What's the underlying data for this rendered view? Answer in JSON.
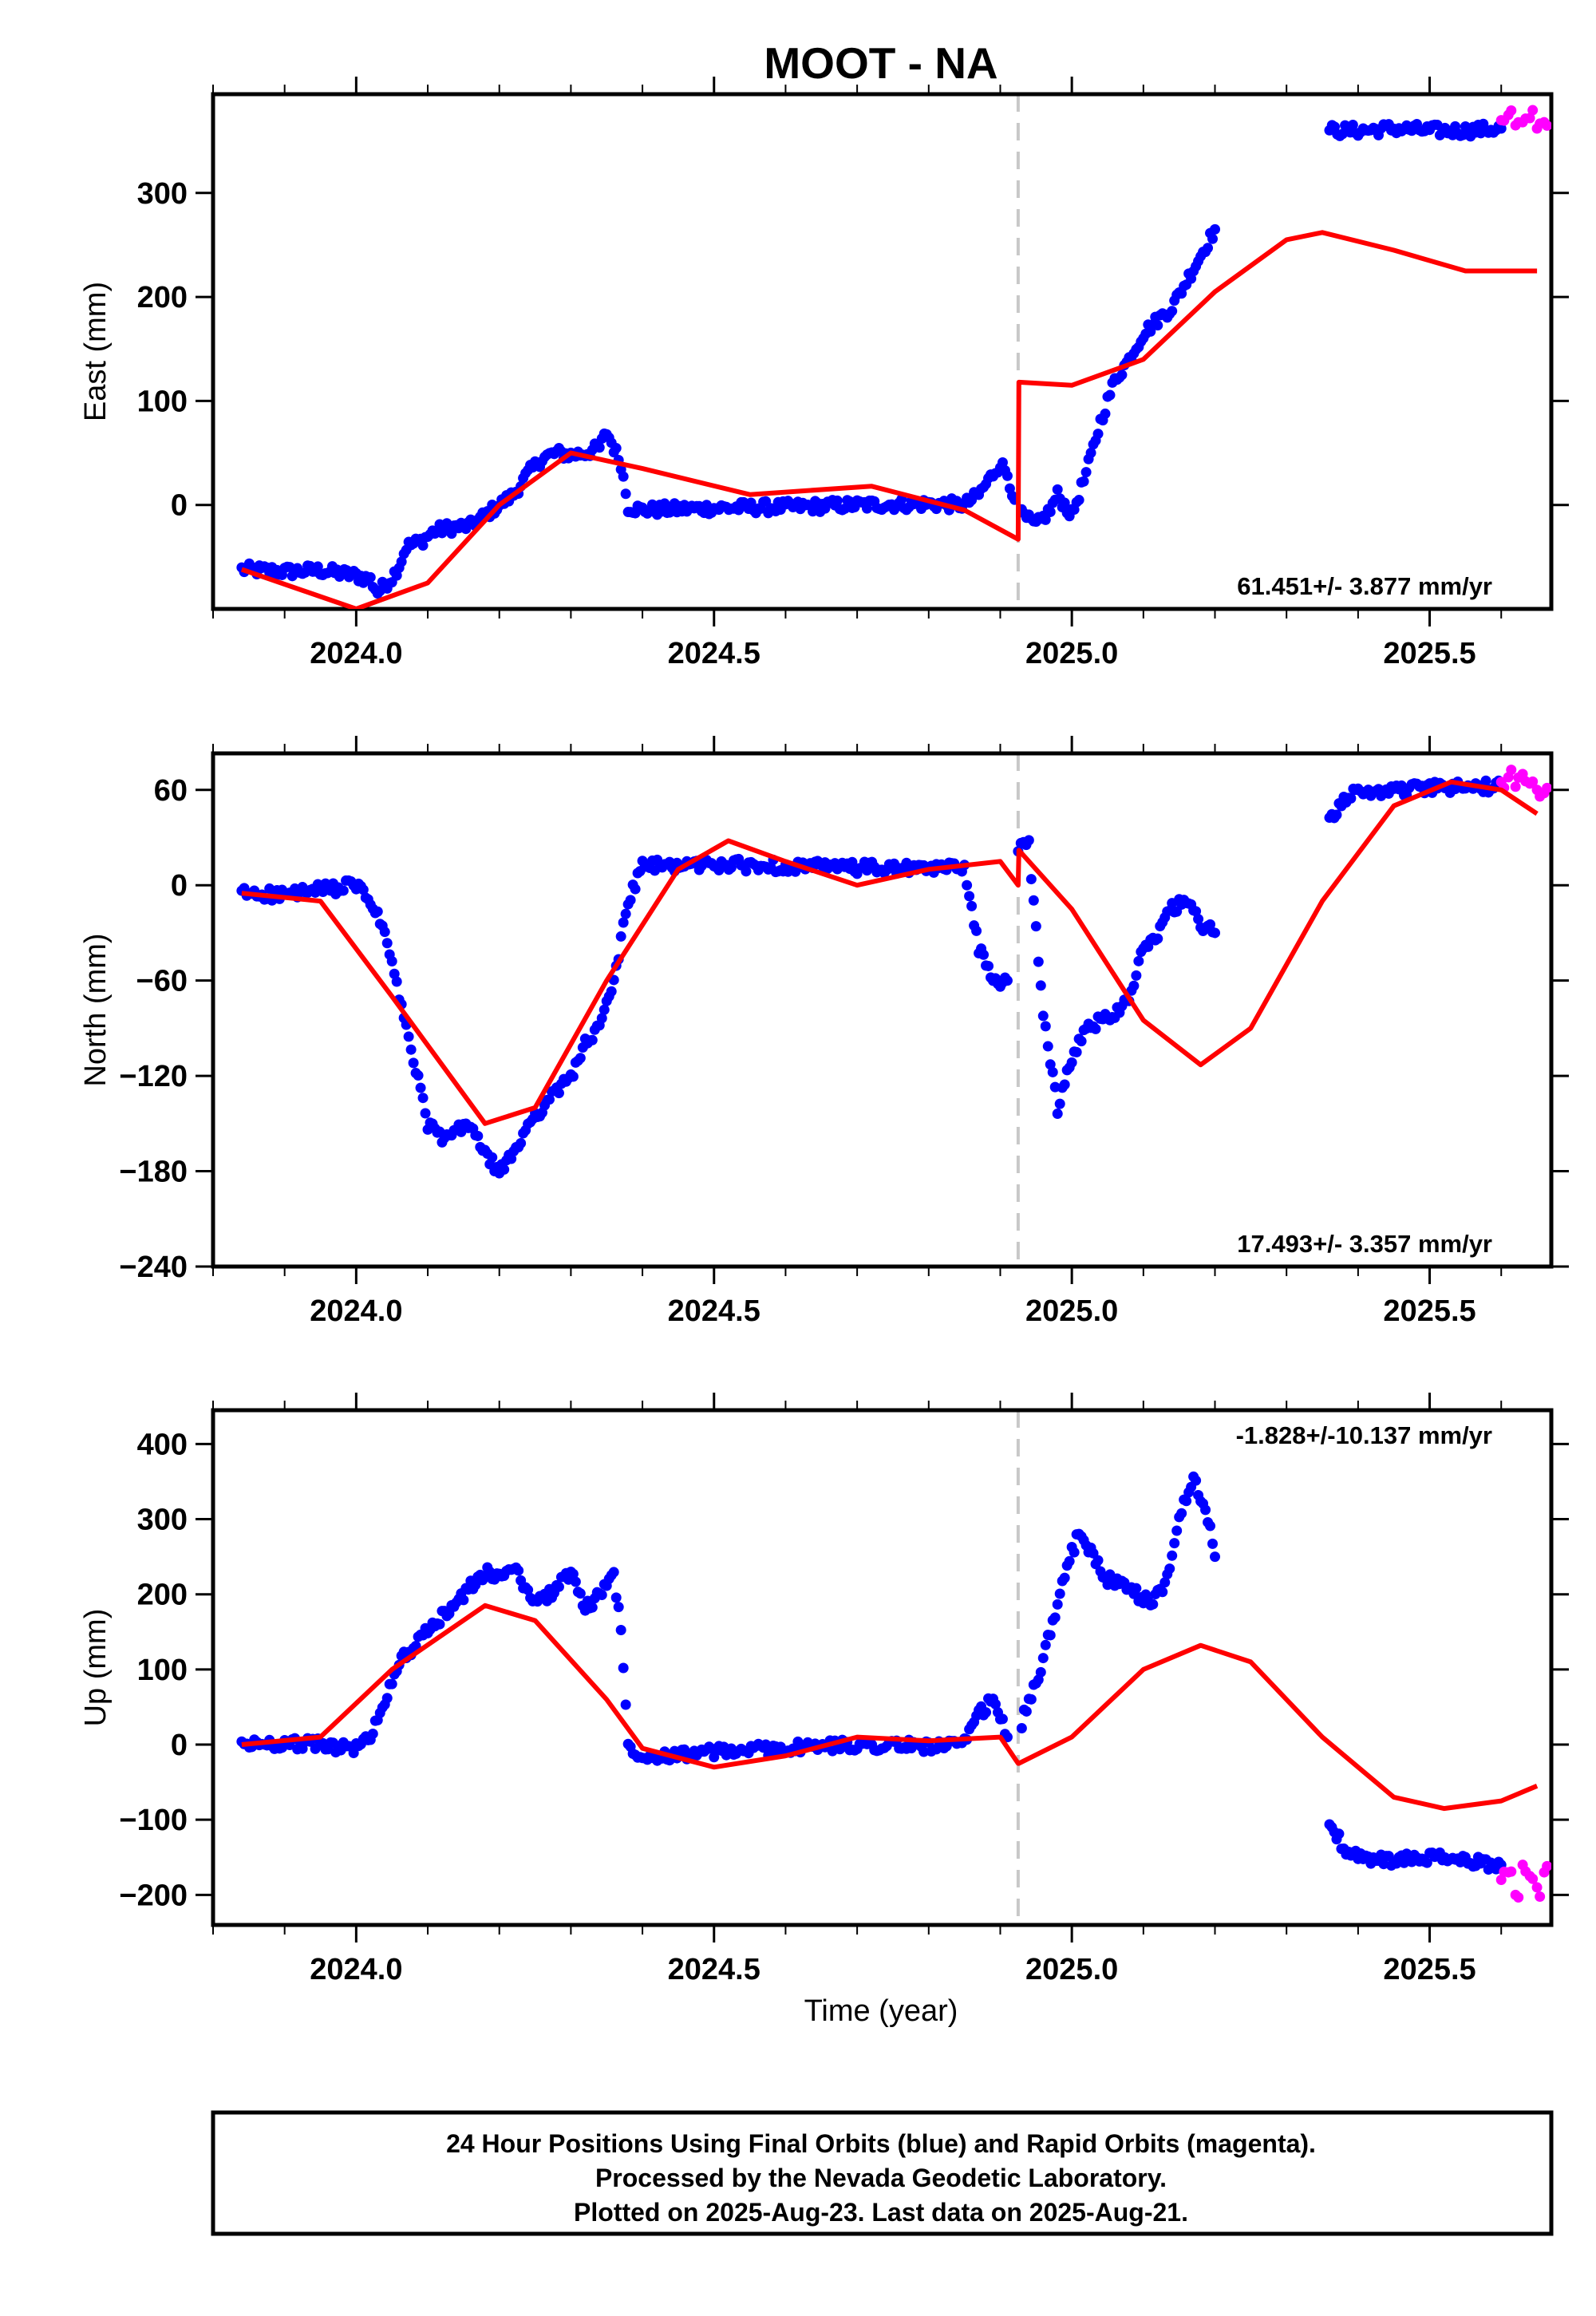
{
  "figure": {
    "title": "MOOT - NA",
    "xlabel": "Time (year)",
    "footer": [
      "24 Hour Positions Using Final Orbits (blue) and Rapid Orbits (magenta).",
      "Processed by the Nevada Geodetic Laboratory.",
      "Plotted on 2025-Aug-23. Last data on 2025-Aug-21."
    ]
  },
  "colors": {
    "final": "#0000ff",
    "rapid": "#ff00ff",
    "model": "#ff0000",
    "event_line": "#c8c8c8"
  },
  "chart_data": [
    {
      "type": "scatter",
      "component": "East",
      "ylabel": "East (mm)",
      "rate": "61.451+/- 3.877 mm/yr",
      "xlim": [
        2023.8,
        2025.67
      ],
      "ylim": [
        -100,
        395
      ],
      "xticks": [
        "2024.0",
        "2024.5",
        "2025.0",
        "2025.5"
      ],
      "yticks": [
        "0",
        "100",
        "200",
        "300"
      ],
      "event_x": 2024.925,
      "final_segments": [
        [
          [
            2023.84,
            -62
          ],
          [
            2023.9,
            -64
          ],
          [
            2023.95,
            -63
          ],
          [
            2023.98,
            -66
          ],
          [
            2024.0,
            -68
          ],
          [
            2024.02,
            -72
          ],
          [
            2024.03,
            -84
          ],
          [
            2024.05,
            -70
          ],
          [
            2024.06,
            -58
          ],
          [
            2024.07,
            -40
          ],
          [
            2024.09,
            -35
          ],
          [
            2024.11,
            -25
          ],
          [
            2024.13,
            -22
          ],
          [
            2024.16,
            -20
          ],
          [
            2024.18,
            -10
          ],
          [
            2024.2,
            0
          ],
          [
            2024.22,
            10
          ],
          [
            2024.24,
            30
          ],
          [
            2024.26,
            45
          ],
          [
            2024.28,
            50
          ],
          [
            2024.3,
            48
          ],
          [
            2024.32,
            50
          ],
          [
            2024.34,
            55
          ],
          [
            2024.35,
            70
          ],
          [
            2024.37,
            40
          ],
          [
            2024.38,
            -2
          ],
          [
            2024.4,
            -5
          ],
          [
            2024.5,
            -3
          ],
          [
            2024.6,
            -2
          ],
          [
            2024.7,
            0
          ],
          [
            2024.8,
            1
          ],
          [
            2024.85,
            0
          ],
          [
            2024.87,
            10
          ],
          [
            2024.89,
            30
          ],
          [
            2024.9,
            40
          ],
          [
            2024.91,
            30
          ],
          [
            2024.92,
            5
          ]
        ],
        [
          [
            2024.93,
            -10
          ],
          [
            2024.95,
            -20
          ],
          [
            2024.97,
            -5
          ],
          [
            2024.98,
            10
          ],
          [
            2025.0,
            -10
          ],
          [
            2025.02,
            30
          ],
          [
            2025.04,
            80
          ],
          [
            2025.06,
            120
          ],
          [
            2025.08,
            140
          ],
          [
            2025.1,
            165
          ],
          [
            2025.12,
            178
          ],
          [
            2025.14,
            190
          ],
          [
            2025.16,
            215
          ],
          [
            2025.18,
            240
          ],
          [
            2025.2,
            265
          ]
        ],
        [
          [
            2025.36,
            360
          ],
          [
            2025.4,
            360
          ],
          [
            2025.45,
            362
          ],
          [
            2025.5,
            360
          ],
          [
            2025.55,
            360
          ],
          [
            2025.6,
            362
          ]
        ]
      ],
      "rapid": [
        [
          2025.6,
          370
        ],
        [
          2025.61,
          375
        ],
        [
          2025.62,
          365
        ],
        [
          2025.63,
          368
        ],
        [
          2025.64,
          372
        ],
        [
          2025.65,
          362
        ],
        [
          2025.66,
          368
        ]
      ],
      "model": [
        [
          2023.84,
          -62
        ],
        [
          2024.0,
          -100
        ],
        [
          2024.1,
          -75
        ],
        [
          2024.2,
          0
        ],
        [
          2024.3,
          50
        ],
        [
          2024.4,
          35
        ],
        [
          2024.55,
          10
        ],
        [
          2024.72,
          18
        ],
        [
          2024.85,
          -5
        ],
        [
          2024.925,
          -33
        ],
        [
          2024.926,
          118
        ],
        [
          2025.0,
          115
        ],
        [
          2025.1,
          140
        ],
        [
          2025.2,
          205
        ],
        [
          2025.3,
          255
        ],
        [
          2025.35,
          262
        ],
        [
          2025.45,
          245
        ],
        [
          2025.55,
          225
        ],
        [
          2025.65,
          225
        ]
      ]
    },
    {
      "type": "scatter",
      "component": "North",
      "ylabel": "North (mm)",
      "rate": "17.493+/- 3.357 mm/yr",
      "xlim": [
        2023.8,
        2025.67
      ],
      "ylim": [
        -240,
        83
      ],
      "xticks": [
        "2024.0",
        "2024.5",
        "2025.0",
        "2025.5"
      ],
      "yticks": [
        "60",
        "0",
        "−60",
        "−120",
        "−180",
        "−240"
      ],
      "event_x": 2024.925,
      "final_segments": [
        [
          [
            2023.84,
            -5
          ],
          [
            2023.9,
            -6
          ],
          [
            2023.95,
            -3
          ],
          [
            2024.0,
            0
          ],
          [
            2024.02,
            -10
          ],
          [
            2024.04,
            -30
          ],
          [
            2024.06,
            -70
          ],
          [
            2024.08,
            -110
          ],
          [
            2024.1,
            -150
          ],
          [
            2024.12,
            -160
          ],
          [
            2024.14,
            -155
          ],
          [
            2024.16,
            -150
          ],
          [
            2024.18,
            -170
          ],
          [
            2024.2,
            -180
          ],
          [
            2024.22,
            -170
          ],
          [
            2024.24,
            -150
          ],
          [
            2024.26,
            -140
          ],
          [
            2024.28,
            -130
          ],
          [
            2024.3,
            -120
          ],
          [
            2024.32,
            -100
          ],
          [
            2024.34,
            -90
          ],
          [
            2024.36,
            -60
          ],
          [
            2024.38,
            -10
          ],
          [
            2024.4,
            12
          ],
          [
            2024.5,
            13
          ],
          [
            2024.6,
            12
          ],
          [
            2024.7,
            11
          ],
          [
            2024.8,
            10
          ],
          [
            2024.85,
            12
          ],
          [
            2024.87,
            -40
          ],
          [
            2024.89,
            -60
          ],
          [
            2024.91,
            -60
          ]
        ],
        [
          [
            2024.925,
            22
          ],
          [
            2024.94,
            25
          ],
          [
            2024.96,
            -80
          ],
          [
            2024.98,
            -140
          ],
          [
            2025.0,
            -110
          ],
          [
            2025.02,
            -90
          ],
          [
            2025.04,
            -85
          ],
          [
            2025.06,
            -80
          ],
          [
            2025.08,
            -70
          ],
          [
            2025.1,
            -40
          ],
          [
            2025.12,
            -30
          ],
          [
            2025.14,
            -15
          ],
          [
            2025.16,
            -10
          ],
          [
            2025.18,
            -25
          ],
          [
            2025.2,
            -30
          ]
        ],
        [
          [
            2025.36,
            40
          ],
          [
            2025.38,
            55
          ],
          [
            2025.4,
            58
          ],
          [
            2025.45,
            60
          ],
          [
            2025.5,
            61
          ],
          [
            2025.55,
            62
          ],
          [
            2025.6,
            62
          ]
        ]
      ],
      "rapid": [
        [
          2025.6,
          65
        ],
        [
          2025.61,
          68
        ],
        [
          2025.62,
          62
        ],
        [
          2025.63,
          70
        ],
        [
          2025.64,
          64
        ],
        [
          2025.65,
          60
        ],
        [
          2025.66,
          58
        ]
      ],
      "model": [
        [
          2023.84,
          -5
        ],
        [
          2023.95,
          -10
        ],
        [
          2024.05,
          -70
        ],
        [
          2024.18,
          -150
        ],
        [
          2024.25,
          -140
        ],
        [
          2024.35,
          -60
        ],
        [
          2024.45,
          10
        ],
        [
          2024.52,
          28
        ],
        [
          2024.6,
          15
        ],
        [
          2024.7,
          0
        ],
        [
          2024.8,
          10
        ],
        [
          2024.9,
          15
        ],
        [
          2024.925,
          0
        ],
        [
          2024.926,
          22
        ],
        [
          2025.0,
          -15
        ],
        [
          2025.1,
          -85
        ],
        [
          2025.18,
          -113
        ],
        [
          2025.25,
          -90
        ],
        [
          2025.35,
          -10
        ],
        [
          2025.45,
          50
        ],
        [
          2025.53,
          65
        ],
        [
          2025.6,
          60
        ],
        [
          2025.65,
          45
        ]
      ]
    },
    {
      "type": "scatter",
      "component": "Up",
      "ylabel": "Up (mm)",
      "rate": "-1.828+/-10.137 mm/yr",
      "xlim": [
        2023.8,
        2025.67
      ],
      "ylim": [
        -240,
        445
      ],
      "xticks": [
        "2024.0",
        "2024.5",
        "2025.0",
        "2025.5"
      ],
      "yticks": [
        "400",
        "300",
        "200",
        "100",
        "0",
        "−100",
        "−200"
      ],
      "event_x": 2024.925,
      "final_segments": [
        [
          [
            2023.84,
            0
          ],
          [
            2023.9,
            2
          ],
          [
            2023.95,
            0
          ],
          [
            2024.0,
            -5
          ],
          [
            2024.02,
            10
          ],
          [
            2024.04,
            60
          ],
          [
            2024.06,
            110
          ],
          [
            2024.08,
            130
          ],
          [
            2024.1,
            150
          ],
          [
            2024.12,
            170
          ],
          [
            2024.14,
            190
          ],
          [
            2024.16,
            210
          ],
          [
            2024.18,
            230
          ],
          [
            2024.2,
            220
          ],
          [
            2024.22,
            240
          ],
          [
            2024.24,
            200
          ],
          [
            2024.26,
            190
          ],
          [
            2024.28,
            210
          ],
          [
            2024.3,
            230
          ],
          [
            2024.32,
            180
          ],
          [
            2024.34,
            200
          ],
          [
            2024.36,
            230
          ],
          [
            2024.37,
            150
          ],
          [
            2024.38,
            0
          ],
          [
            2024.4,
            -15
          ],
          [
            2024.5,
            -10
          ],
          [
            2024.6,
            -5
          ],
          [
            2024.7,
            0
          ],
          [
            2024.8,
            -2
          ],
          [
            2024.85,
            0
          ],
          [
            2024.87,
            40
          ],
          [
            2024.89,
            60
          ],
          [
            2024.91,
            10
          ]
        ],
        [
          [
            2024.93,
            30
          ],
          [
            2024.95,
            80
          ],
          [
            2024.97,
            150
          ],
          [
            2024.99,
            230
          ],
          [
            2025.01,
            280
          ],
          [
            2025.03,
            250
          ],
          [
            2025.05,
            220
          ],
          [
            2025.07,
            210
          ],
          [
            2025.09,
            200
          ],
          [
            2025.11,
            190
          ],
          [
            2025.13,
            210
          ],
          [
            2025.15,
            300
          ],
          [
            2025.17,
            360
          ],
          [
            2025.19,
            300
          ],
          [
            2025.2,
            250
          ]
        ],
        [
          [
            2025.36,
            -100
          ],
          [
            2025.38,
            -140
          ],
          [
            2025.4,
            -150
          ],
          [
            2025.45,
            -155
          ],
          [
            2025.5,
            -150
          ],
          [
            2025.55,
            -155
          ],
          [
            2025.6,
            -160
          ]
        ]
      ],
      "rapid": [
        [
          2025.6,
          -180
        ],
        [
          2025.61,
          -170
        ],
        [
          2025.62,
          -200
        ],
        [
          2025.63,
          -160
        ],
        [
          2025.64,
          -175
        ],
        [
          2025.65,
          -190
        ],
        [
          2025.66,
          -170
        ]
      ],
      "model": [
        [
          2023.84,
          0
        ],
        [
          2023.95,
          10
        ],
        [
          2024.05,
          100
        ],
        [
          2024.18,
          185
        ],
        [
          2024.25,
          165
        ],
        [
          2024.35,
          60
        ],
        [
          2024.4,
          -5
        ],
        [
          2024.5,
          -30
        ],
        [
          2024.6,
          -15
        ],
        [
          2024.7,
          10
        ],
        [
          2024.8,
          5
        ],
        [
          2024.9,
          10
        ],
        [
          2024.925,
          -25
        ],
        [
          2024.926,
          -25
        ],
        [
          2025.0,
          10
        ],
        [
          2025.1,
          100
        ],
        [
          2025.18,
          132
        ],
        [
          2025.25,
          110
        ],
        [
          2025.35,
          10
        ],
        [
          2025.45,
          -70
        ],
        [
          2025.52,
          -85
        ],
        [
          2025.6,
          -75
        ],
        [
          2025.65,
          -55
        ]
      ]
    }
  ]
}
